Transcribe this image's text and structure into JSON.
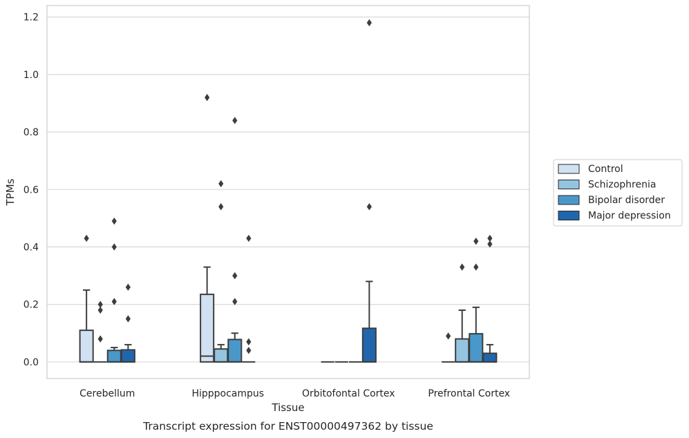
{
  "chart_data": {
    "type": "boxplot",
    "caption": "Transcript expression for ENST00000497362 by tissue",
    "xlabel": "Tissue",
    "ylabel": "TPMs",
    "ylim": [
      -0.058,
      1.24
    ],
    "yticks": [
      "0.0",
      "0.2",
      "0.4",
      "0.6",
      "0.8",
      "1.0",
      "1.2"
    ],
    "categories": [
      "Cerebellum",
      "Hipppocampus",
      "Orbitofontal Cortex",
      "Prefrontal Cortex"
    ],
    "grid": "horizontal",
    "legend_position": "right",
    "colors": [
      "#d0e1f2",
      "#94c4df",
      "#4a98c9",
      "#2166ac"
    ],
    "series": [
      {
        "name": "Control",
        "boxes": [
          {
            "q1": 0.0,
            "median": 0.0,
            "q3": 0.11,
            "whisker_low": 0.0,
            "whisker_high": 0.25,
            "fliers": [
              0.43
            ]
          },
          {
            "q1": 0.0,
            "median": 0.02,
            "q3": 0.235,
            "whisker_low": 0.0,
            "whisker_high": 0.33,
            "fliers": [
              0.92
            ]
          },
          {
            "q1": 0.0,
            "median": 0.0,
            "q3": 0.0,
            "whisker_low": 0.0,
            "whisker_high": 0.0,
            "fliers": []
          },
          {
            "q1": 0.0,
            "median": 0.0,
            "q3": 0.0,
            "whisker_low": 0.0,
            "whisker_high": 0.0,
            "fliers": [
              0.09
            ]
          }
        ]
      },
      {
        "name": "Schizophrenia",
        "boxes": [
          {
            "q1": 0.0,
            "median": 0.0,
            "q3": 0.0,
            "whisker_low": 0.0,
            "whisker_high": 0.0,
            "fliers": [
              0.2,
              0.18,
              0.08
            ]
          },
          {
            "q1": 0.0,
            "median": 0.0,
            "q3": 0.045,
            "whisker_low": 0.0,
            "whisker_high": 0.06,
            "fliers": [
              0.62,
              0.54
            ]
          },
          {
            "q1": 0.0,
            "median": 0.0,
            "q3": 0.0,
            "whisker_low": 0.0,
            "whisker_high": 0.0,
            "fliers": []
          },
          {
            "q1": 0.0,
            "median": 0.0,
            "q3": 0.08,
            "whisker_low": 0.0,
            "whisker_high": 0.18,
            "fliers": [
              0.33
            ]
          }
        ]
      },
      {
        "name": "Bipolar disorder",
        "boxes": [
          {
            "q1": 0.0,
            "median": 0.0,
            "q3": 0.04,
            "whisker_low": 0.0,
            "whisker_high": 0.05,
            "fliers": [
              0.49,
              0.4,
              0.21
            ]
          },
          {
            "q1": 0.0,
            "median": 0.0,
            "q3": 0.078,
            "whisker_low": 0.0,
            "whisker_high": 0.1,
            "fliers": [
              0.84,
              0.3,
              0.21
            ]
          },
          {
            "q1": 0.0,
            "median": 0.0,
            "q3": 0.0,
            "whisker_low": 0.0,
            "whisker_high": 0.0,
            "fliers": []
          },
          {
            "q1": 0.0,
            "median": 0.0,
            "q3": 0.098,
            "whisker_low": 0.0,
            "whisker_high": 0.19,
            "fliers": [
              0.42,
              0.33
            ]
          }
        ]
      },
      {
        "name": "Major depression",
        "boxes": [
          {
            "q1": 0.0,
            "median": 0.0,
            "q3": 0.042,
            "whisker_low": 0.0,
            "whisker_high": 0.06,
            "fliers": [
              0.26,
              0.15
            ]
          },
          {
            "q1": 0.0,
            "median": 0.0,
            "q3": 0.0,
            "whisker_low": 0.0,
            "whisker_high": 0.0,
            "fliers": [
              0.43,
              0.07,
              0.04
            ]
          },
          {
            "q1": 0.0,
            "median": 0.0,
            "q3": 0.117,
            "whisker_low": 0.0,
            "whisker_high": 0.28,
            "fliers": [
              1.18,
              0.54
            ]
          },
          {
            "q1": 0.0,
            "median": 0.0,
            "q3": 0.03,
            "whisker_low": 0.0,
            "whisker_high": 0.06,
            "fliers": [
              0.43,
              0.41
            ]
          }
        ]
      }
    ]
  }
}
